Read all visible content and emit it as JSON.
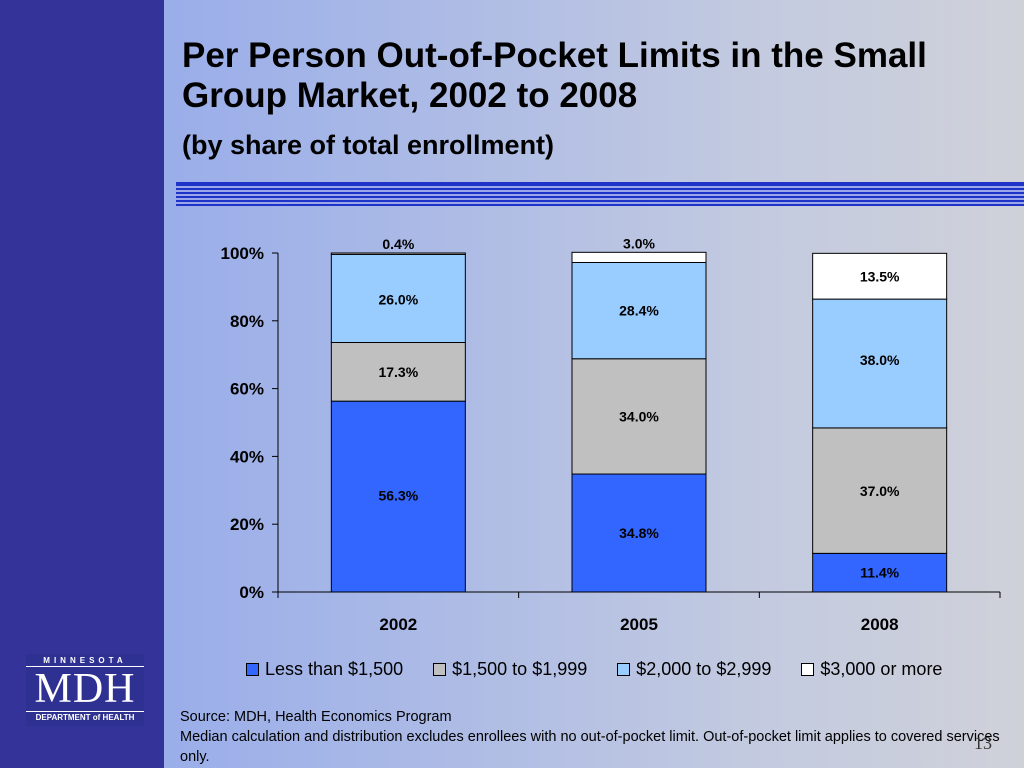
{
  "slide": {
    "title": "Per Person Out-of-Pocket Limits in the Small Group Market, 2002 to 2008",
    "subtitle": "(by share of total enrollment)",
    "page_number": "13"
  },
  "logo": {
    "top_text": "MINNESOTA",
    "main_text": "MDH",
    "bottom_text": "DEPARTMENT of HEALTH"
  },
  "source": {
    "line1": "Source:  MDH, Health Economics Program",
    "line2": "Median calculation and distribution excludes enrollees with no out-of-pocket limit. Out-of-pocket limit applies to covered services only."
  },
  "chart_data": {
    "type": "bar",
    "stacked": true,
    "categories": [
      "2002",
      "2005",
      "2008"
    ],
    "ylim": [
      0,
      100
    ],
    "yticks": [
      "0%",
      "20%",
      "40%",
      "60%",
      "80%",
      "100%"
    ],
    "grid": false,
    "legend_position": "bottom",
    "series": [
      {
        "name": "Less than $1,500",
        "color": "#3366ff",
        "values": [
          56.3,
          34.8,
          11.4
        ],
        "labels": [
          "56.3%",
          "34.8%",
          "11.4%"
        ]
      },
      {
        "name": "$1,500 to $1,999",
        "color": "#c0c0c0",
        "values": [
          17.3,
          34.0,
          37.0
        ],
        "labels": [
          "17.3%",
          "34.0%",
          "37.0%"
        ]
      },
      {
        "name": "$2,000 to $2,999",
        "color": "#99ccff",
        "values": [
          26.0,
          28.4,
          38.0
        ],
        "labels": [
          "26.0%",
          "28.4%",
          "38.0%"
        ]
      },
      {
        "name": "$3,000 or more",
        "color": "#ffffff",
        "values": [
          0.4,
          3.0,
          13.5
        ],
        "labels": [
          "0.4%",
          "3.0%",
          "13.5%"
        ]
      }
    ]
  }
}
